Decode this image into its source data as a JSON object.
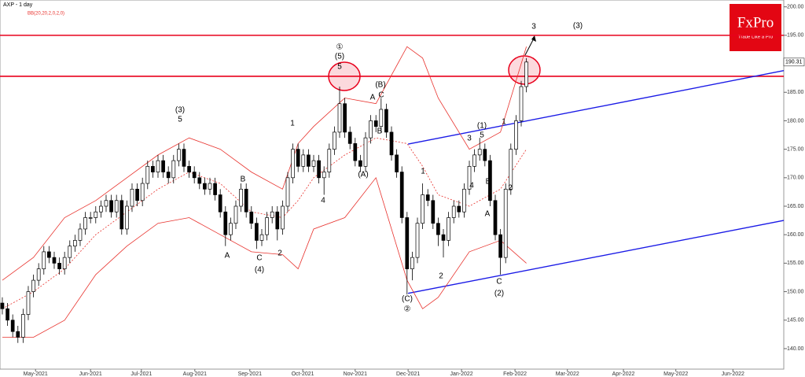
{
  "chart_data": {
    "type": "candlestick",
    "title": "AXP - 1 day",
    "subtitle": "BB(20,20,2,0,2,0)",
    "logo": "FxPro",
    "tagline": "Trade Like a Pro",
    "candles": [
      [
        148,
        149,
        146,
        147
      ],
      [
        147,
        148,
        144,
        145
      ],
      [
        145,
        146,
        142,
        143
      ],
      [
        143,
        144,
        141,
        142
      ],
      [
        142,
        147,
        141,
        146
      ],
      [
        146,
        151,
        145,
        150
      ],
      [
        150,
        153,
        149,
        152
      ],
      [
        152,
        155,
        151,
        154
      ],
      [
        154,
        158,
        153,
        157
      ],
      [
        157,
        158,
        155,
        156
      ],
      [
        156,
        157,
        154,
        155
      ],
      [
        155,
        156,
        153,
        154
      ],
      [
        154,
        157,
        153,
        156
      ],
      [
        156,
        159,
        155,
        158
      ],
      [
        158,
        160,
        157,
        159
      ],
      [
        159,
        162,
        158,
        161
      ],
      [
        161,
        164,
        160,
        163
      ],
      [
        163,
        164,
        162,
        163
      ],
      [
        163,
        165,
        162,
        164
      ],
      [
        164,
        166,
        163,
        165
      ],
      [
        165,
        167,
        164,
        166
      ],
      [
        166,
        167,
        163,
        164
      ],
      [
        164,
        167,
        163,
        166
      ],
      [
        166,
        167,
        160,
        161
      ],
      [
        161,
        166,
        160,
        165
      ],
      [
        165,
        169,
        164,
        168
      ],
      [
        168,
        169,
        165,
        166
      ],
      [
        166,
        170,
        165,
        169
      ],
      [
        169,
        173,
        168,
        172
      ],
      [
        172,
        173,
        170,
        171
      ],
      [
        171,
        174,
        170,
        173
      ],
      [
        173,
        174,
        170,
        171
      ],
      [
        171,
        172,
        169,
        170
      ],
      [
        170,
        174,
        169,
        173
      ],
      [
        173,
        176,
        172,
        175
      ],
      [
        175,
        176,
        171,
        172
      ],
      [
        172,
        173,
        170,
        171
      ],
      [
        171,
        172,
        169,
        170
      ],
      [
        170,
        171,
        168,
        169
      ],
      [
        169,
        170,
        167,
        168
      ],
      [
        168,
        170,
        167,
        169
      ],
      [
        169,
        170,
        166,
        167
      ],
      [
        167,
        168,
        163,
        164
      ],
      [
        164,
        165,
        158,
        160
      ],
      [
        160,
        163,
        159,
        162
      ],
      [
        162,
        166,
        161,
        165
      ],
      [
        165,
        169,
        164,
        168
      ],
      [
        168,
        169,
        163,
        164
      ],
      [
        164,
        165,
        161,
        162
      ],
      [
        162,
        163,
        157.5,
        159
      ],
      [
        159,
        161,
        158,
        160
      ],
      [
        160,
        164,
        159,
        163
      ],
      [
        163,
        165,
        162,
        164
      ],
      [
        164,
        165,
        159,
        161
      ],
      [
        161,
        166,
        160,
        165
      ],
      [
        165,
        171,
        164,
        170
      ],
      [
        170,
        176,
        169,
        175
      ],
      [
        175,
        176,
        171,
        172
      ],
      [
        172,
        175,
        171,
        174
      ],
      [
        174,
        175,
        171,
        172
      ],
      [
        172,
        174,
        171,
        173
      ],
      [
        173,
        174,
        169,
        170
      ],
      [
        170,
        172,
        167,
        171
      ],
      [
        171,
        176,
        170,
        175
      ],
      [
        175,
        179,
        174,
        178
      ],
      [
        178,
        186,
        177,
        183
      ],
      [
        183,
        184,
        177,
        178
      ],
      [
        178,
        179,
        175,
        176
      ],
      [
        176,
        177,
        172,
        173
      ],
      [
        173,
        174,
        171,
        172
      ],
      [
        172,
        178,
        171,
        177
      ],
      [
        177,
        181,
        176,
        180
      ],
      [
        180,
        181,
        178,
        179
      ],
      [
        179,
        184,
        178,
        182
      ],
      [
        182,
        183,
        177,
        178
      ],
      [
        178,
        179,
        173,
        174
      ],
      [
        174,
        175,
        170,
        171
      ],
      [
        171,
        172,
        162,
        163
      ],
      [
        163,
        164,
        149.5,
        154
      ],
      [
        154,
        157,
        152,
        156
      ],
      [
        156,
        163,
        155,
        162
      ],
      [
        162,
        169,
        161,
        167
      ],
      [
        167,
        168,
        165,
        166
      ],
      [
        166,
        167,
        161,
        162
      ],
      [
        162,
        163,
        158,
        160
      ],
      [
        160,
        161,
        156,
        159
      ],
      [
        159,
        164,
        158,
        163
      ],
      [
        163,
        166,
        162,
        165
      ],
      [
        165,
        166,
        163,
        164
      ],
      [
        164,
        169,
        163,
        168
      ],
      [
        168,
        173,
        167,
        172
      ],
      [
        172,
        175,
        171,
        174
      ],
      [
        174,
        177,
        173,
        175
      ],
      [
        175,
        176,
        172,
        173
      ],
      [
        173,
        174,
        165,
        166
      ],
      [
        166,
        167,
        159,
        160
      ],
      [
        160,
        161,
        153,
        156
      ],
      [
        156,
        169,
        155,
        168
      ],
      [
        168,
        176,
        167,
        175
      ],
      [
        175,
        181,
        174,
        180
      ],
      [
        180,
        187,
        179,
        186
      ],
      [
        186,
        191,
        185,
        190.31
      ]
    ],
    "bands": {
      "color": "#e8322d",
      "x": [
        0,
        6,
        12,
        18,
        24,
        30,
        36,
        42,
        48,
        54,
        57,
        60,
        66,
        72,
        78,
        81,
        84,
        90,
        96,
        101
      ],
      "upper": [
        152,
        156,
        163,
        166,
        170,
        174,
        177,
        175,
        171,
        168,
        176,
        179,
        184,
        183,
        193,
        191,
        184,
        175,
        178,
        193
      ],
      "middle": [
        147,
        150,
        154,
        160,
        164,
        168,
        171,
        169,
        164,
        163,
        166,
        170,
        174,
        177,
        176,
        172,
        167,
        165,
        168,
        175
      ],
      "lower": [
        142,
        142,
        145,
        153,
        158,
        162,
        163,
        160,
        157,
        156.5,
        154,
        161,
        163,
        170,
        152,
        147,
        149,
        157,
        159,
        155
      ]
    },
    "levels": [
      195.0,
      187.8
    ],
    "level_color": "#e8001c",
    "trendlines": [
      {
        "x": [
          78.2,
          150.6
        ],
        "y": [
          175.9,
          188.8
        ]
      },
      {
        "x": [
          78.2,
          150.6
        ],
        "y": [
          149.7,
          162.5
        ]
      }
    ],
    "trend_color": "#1a1ae6",
    "xlim": [
      -0.45,
      150.6
    ],
    "ylim": [
      136.4,
      201.2
    ],
    "xticks": [
      {
        "value": 6.4,
        "label": "May-2021"
      },
      {
        "value": 17,
        "label": "Jun-2021"
      },
      {
        "value": 26.8,
        "label": "Jul-2021"
      },
      {
        "value": 37.1,
        "label": "Aug-2021"
      },
      {
        "value": 47.7,
        "label": "Sep-2021"
      },
      {
        "value": 57.9,
        "label": "Oct-2021"
      },
      {
        "value": 68,
        "label": "Nov-2021"
      },
      {
        "value": 78.2,
        "label": "Dec-2021"
      },
      {
        "value": 88.5,
        "label": "Jan-2022"
      },
      {
        "value": 98.8,
        "label": "Feb-2022"
      },
      {
        "value": 108.9,
        "label": "Mar-2022"
      },
      {
        "value": 119.7,
        "label": "Apr-2022"
      },
      {
        "value": 129.8,
        "label": "May-2022"
      },
      {
        "value": 140.8,
        "label": "Jun-2022"
      }
    ],
    "yticks": [
      {
        "value": 140,
        "label": "140.00"
      },
      {
        "value": 145,
        "label": "145.00"
      },
      {
        "value": 150,
        "label": "150.00"
      },
      {
        "value": 155,
        "label": "155.00"
      },
      {
        "value": 160,
        "label": "160.00"
      },
      {
        "value": 165,
        "label": "165.00"
      },
      {
        "value": 170,
        "label": "170.00"
      },
      {
        "value": 175,
        "label": "175.00"
      },
      {
        "value": 180,
        "label": "180.00"
      },
      {
        "value": 185,
        "label": "185.00"
      },
      {
        "value": 190,
        "label": "190.00"
      },
      {
        "value": 195,
        "label": "195.00"
      },
      {
        "value": 200,
        "label": "200.00"
      }
    ],
    "annotations": [
      "①",
      "(5)",
      "5",
      "(3)",
      "5",
      "B",
      "A",
      "C",
      "(4)",
      "2",
      "1",
      "4",
      "(A)",
      "A",
      "(B)",
      "C",
      "B",
      "1",
      "2",
      "(C)",
      "②",
      "3",
      "(1)",
      "5",
      "4",
      "B",
      "A",
      "2",
      "1",
      "C",
      "(2)",
      "3",
      "(3)"
    ]
  }
}
